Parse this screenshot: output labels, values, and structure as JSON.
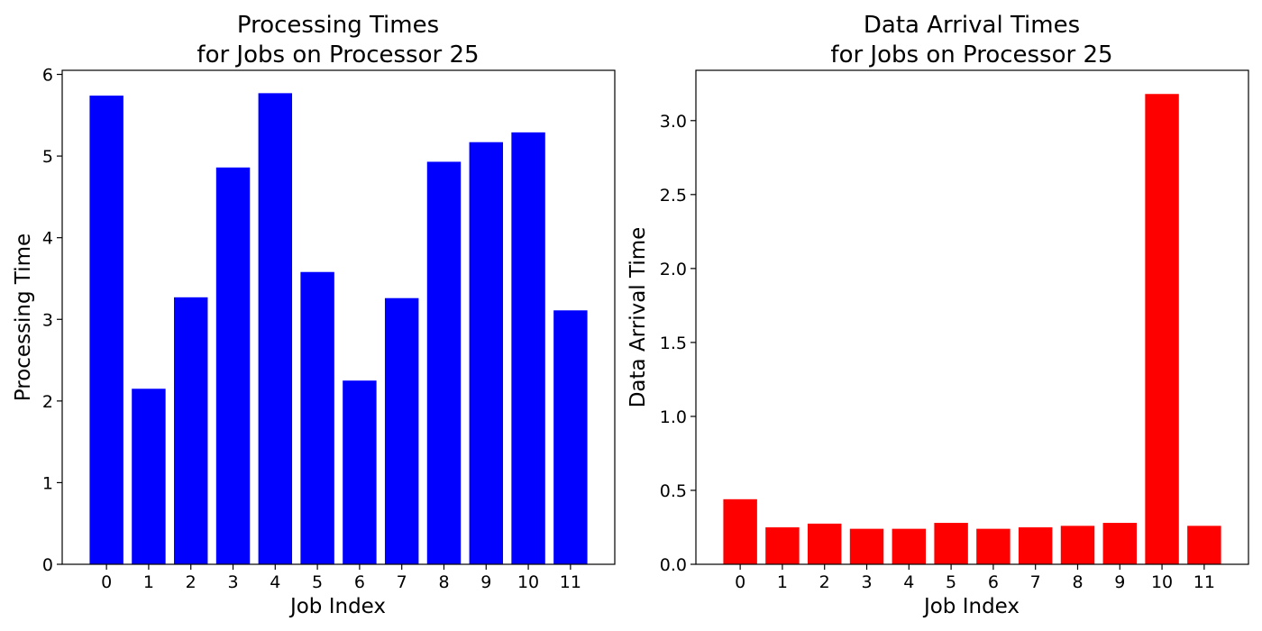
{
  "chart_data": [
    {
      "type": "bar",
      "title_lines": [
        "Processing Times",
        "for Jobs on Processor 25"
      ],
      "xlabel": "Job Index",
      "ylabel": "Processing Time",
      "categories": [
        "0",
        "1",
        "2",
        "3",
        "4",
        "5",
        "6",
        "7",
        "8",
        "9",
        "10",
        "11"
      ],
      "values": [
        5.74,
        2.15,
        3.27,
        4.86,
        5.77,
        3.58,
        2.25,
        3.26,
        4.93,
        5.17,
        5.29,
        3.11
      ],
      "ylim": [
        0,
        6.05
      ],
      "yticks": [
        0,
        1,
        2,
        3,
        4,
        5,
        6
      ],
      "ytick_labels": [
        "0",
        "1",
        "2",
        "3",
        "4",
        "5",
        "6"
      ],
      "color": "#0000ff",
      "grid": false
    },
    {
      "type": "bar",
      "title_lines": [
        "Data Arrival Times",
        "for Jobs on Processor 25"
      ],
      "xlabel": "Job Index",
      "ylabel": "Data Arrival Time",
      "categories": [
        "0",
        "1",
        "2",
        "3",
        "4",
        "5",
        "6",
        "7",
        "8",
        "9",
        "10",
        "11"
      ],
      "values": [
        0.44,
        0.25,
        0.275,
        0.24,
        0.24,
        0.28,
        0.24,
        0.25,
        0.26,
        0.28,
        3.18,
        0.26
      ],
      "ylim": [
        0,
        3.34
      ],
      "yticks": [
        0,
        0.5,
        1.0,
        1.5,
        2.0,
        2.5,
        3.0
      ],
      "ytick_labels": [
        "0.0",
        "0.5",
        "1.0",
        "1.5",
        "2.0",
        "2.5",
        "3.0"
      ],
      "color": "#ff0000",
      "grid": false
    }
  ]
}
